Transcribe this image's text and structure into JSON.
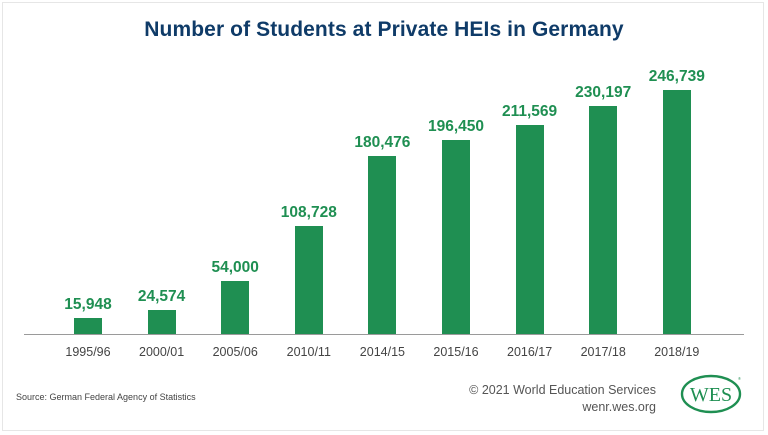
{
  "title": "Number of Students at Private HEIs in Germany",
  "footer": {
    "source": "Source: German Federal Agency of Statistics",
    "copyright": "© 2021 World Education Services",
    "website": "wenr.wes.org",
    "logo_text": "WES",
    "logo_icon": "wes-logo-icon"
  },
  "colors": {
    "title": "#0f3b68",
    "bar": "#1f8f52",
    "value_label": "#1f8f52",
    "axis": "#9a9a9a"
  },
  "chart_data": {
    "type": "bar",
    "title": "Number of Students at Private HEIs in Germany",
    "xlabel": "",
    "ylabel": "",
    "categories": [
      "1995/96",
      "2000/01",
      "2005/06",
      "2010/11",
      "2014/15",
      "2015/16",
      "2016/17",
      "2017/18",
      "2018/19"
    ],
    "values": [
      15948,
      24574,
      54000,
      108728,
      180476,
      196450,
      211569,
      230197,
      246739
    ],
    "value_labels": [
      "15,948",
      "24,574",
      "54,000",
      "108,728",
      "180,476",
      "196,450",
      "211,569",
      "230,197",
      "246,739"
    ],
    "ylim": [
      0,
      246739
    ],
    "grid": false,
    "legend": null,
    "source": "Source: German Federal Agency of Statistics"
  }
}
